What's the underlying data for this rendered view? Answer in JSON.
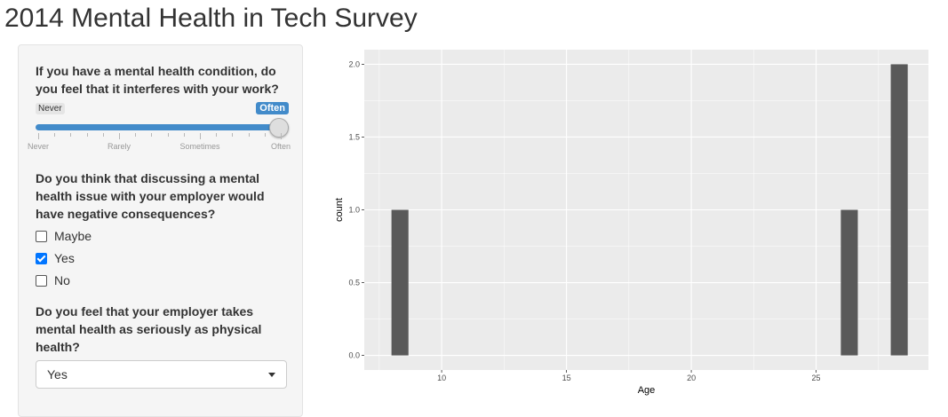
{
  "page": {
    "title": "2014 Mental Health in Tech Survey"
  },
  "sidebar": {
    "q1": {
      "label": "If you have a mental health condition, do you feel that it interferes with your work?",
      "slider": {
        "min_label": "Never",
        "value_label": "Often",
        "choices": [
          "Never",
          "Rarely",
          "Sometimes",
          "Often"
        ],
        "selected_index": 3
      }
    },
    "q2": {
      "label": "Do you think that discussing a mental health issue with your employer would have negative consequences?",
      "options": [
        {
          "label": "Maybe",
          "checked": false
        },
        {
          "label": "Yes",
          "checked": true
        },
        {
          "label": "No",
          "checked": false
        }
      ]
    },
    "q3": {
      "label": "Do you feel that your employer takes mental health as seriously as physical health?",
      "selected": "Yes",
      "icon": "chevron-down-icon"
    }
  },
  "chart_data": {
    "type": "bar",
    "xlabel": "Age",
    "ylabel": "count",
    "xlim": [
      6.9,
      29.5
    ],
    "ylim": [
      -0.1,
      2.1
    ],
    "x_ticks": [
      "10",
      "15",
      "20",
      "25"
    ],
    "y_ticks": [
      "0.0",
      "0.5",
      "1.0",
      "1.5",
      "2.0"
    ],
    "grid": true,
    "bars": [
      {
        "x": 8.33,
        "count": 1
      },
      {
        "x": 26.33,
        "count": 1
      },
      {
        "x": 28.33,
        "count": 2
      }
    ],
    "bar_width": 0.68,
    "colors": {
      "panel_bg": "#ebebeb",
      "grid": "#ffffff",
      "bar": "#595959"
    }
  }
}
